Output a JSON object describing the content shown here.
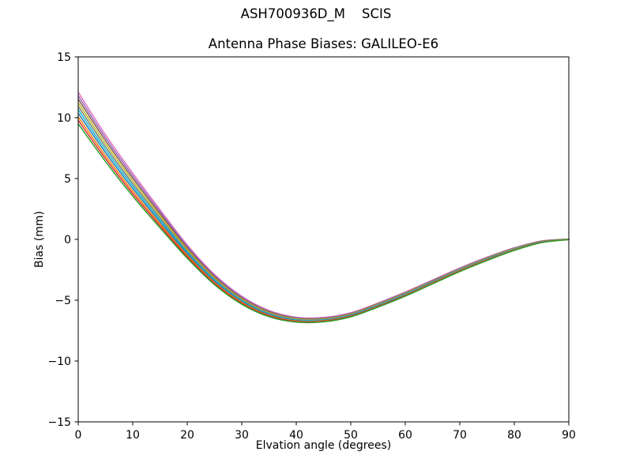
{
  "figure": {
    "suptitle": "ASH700936D_M    SCIS",
    "background": "#ffffff"
  },
  "chart_data": {
    "type": "line",
    "title": "Antenna Phase Biases: GALILEO-E6",
    "xlabel": "Elvation angle (degrees)",
    "ylabel": "Bias (mm)",
    "xlim": [
      0,
      90
    ],
    "ylim": [
      -15,
      15
    ],
    "x_ticks": [
      0,
      10,
      20,
      30,
      40,
      50,
      60,
      70,
      80,
      90
    ],
    "x_tick_labels": [
      "0",
      "10",
      "20",
      "30",
      "40",
      "50",
      "60",
      "70",
      "80",
      "90"
    ],
    "y_ticks": [
      -15,
      -10,
      -5,
      0,
      5,
      10,
      15
    ],
    "y_tick_labels": [
      "−15",
      "−10",
      "−5",
      "0",
      "5",
      "10",
      "15"
    ],
    "grid": false,
    "legend_position": "none",
    "axes_color": "#000000",
    "x": [
      0,
      5,
      10,
      15,
      20,
      25,
      30,
      35,
      40,
      45,
      50,
      55,
      60,
      65,
      70,
      75,
      80,
      85,
      90
    ],
    "series": [
      {
        "name": "line-1",
        "color": "#e377c2",
        "values": [
          12.1,
          8.6,
          5.45,
          2.45,
          -0.45,
          -2.88,
          -4.67,
          -5.84,
          -6.4,
          -6.42,
          -6.03,
          -5.23,
          -4.33,
          -3.34,
          -2.35,
          -1.46,
          -0.69,
          -0.13,
          0.02
        ]
      },
      {
        "name": "line-2",
        "color": "#9467bd",
        "values": [
          11.81,
          8.36,
          5.24,
          2.29,
          -0.57,
          -2.97,
          -4.74,
          -5.9,
          -6.44,
          -6.46,
          -6.07,
          -5.27,
          -4.37,
          -3.38,
          -2.38,
          -1.49,
          -0.71,
          -0.15,
          0.02
        ]
      },
      {
        "name": "line-3",
        "color": "#8c564b",
        "values": [
          11.53,
          8.12,
          5.03,
          2.12,
          -0.69,
          -3.06,
          -4.82,
          -5.95,
          -6.49,
          -6.5,
          -6.1,
          -5.3,
          -4.4,
          -3.41,
          -2.42,
          -1.52,
          -0.74,
          -0.16,
          0.01
        ]
      },
      {
        "name": "line-4",
        "color": "#bcbd22",
        "values": [
          11.23,
          7.86,
          4.81,
          1.95,
          -0.82,
          -3.16,
          -4.89,
          -6.01,
          -6.53,
          -6.54,
          -6.14,
          -5.34,
          -4.44,
          -3.45,
          -2.45,
          -1.55,
          -0.76,
          -0.18,
          0.01
        ]
      },
      {
        "name": "line-5",
        "color": "#7f7f7f",
        "values": [
          10.94,
          7.62,
          4.6,
          1.78,
          -0.94,
          -3.25,
          -4.96,
          -6.07,
          -6.58,
          -6.58,
          -6.18,
          -5.38,
          -4.48,
          -3.48,
          -2.48,
          -1.58,
          -0.79,
          -0.19,
          0.0
        ]
      },
      {
        "name": "line-6",
        "color": "#17becf",
        "values": [
          10.66,
          7.38,
          4.4,
          1.62,
          -1.06,
          -3.35,
          -5.04,
          -6.13,
          -6.62,
          -6.62,
          -6.22,
          -5.42,
          -4.52,
          -3.52,
          -2.52,
          -1.62,
          -0.81,
          -0.21,
          0.0
        ]
      },
      {
        "name": "line-7",
        "color": "#1f77b4",
        "values": [
          10.37,
          7.14,
          4.19,
          1.45,
          -1.18,
          -3.44,
          -5.11,
          -6.19,
          -6.67,
          -6.66,
          -6.26,
          -5.46,
          -4.56,
          -3.55,
          -2.55,
          -1.65,
          -0.84,
          -0.22,
          -0.01
        ]
      },
      {
        "name": "line-8",
        "color": "#ff7f0e",
        "values": [
          10.07,
          6.88,
          3.97,
          1.28,
          -1.31,
          -3.54,
          -5.18,
          -6.25,
          -6.71,
          -6.7,
          -6.3,
          -5.5,
          -4.6,
          -3.59,
          -2.58,
          -1.68,
          -0.86,
          -0.24,
          -0.01
        ]
      },
      {
        "name": "line-9",
        "color": "#d62728",
        "values": [
          9.79,
          6.64,
          3.76,
          1.12,
          -1.43,
          -3.63,
          -5.26,
          -6.3,
          -6.76,
          -6.74,
          -6.33,
          -5.53,
          -4.63,
          -3.63,
          -2.62,
          -1.71,
          -0.89,
          -0.26,
          -0.02
        ]
      },
      {
        "name": "line-10",
        "color": "#2ca02c",
        "values": [
          9.5,
          6.4,
          3.55,
          0.95,
          -1.55,
          -3.72,
          -5.33,
          -6.36,
          -6.8,
          -6.78,
          -6.37,
          -5.57,
          -4.67,
          -3.66,
          -2.65,
          -1.74,
          -0.91,
          -0.27,
          -0.02
        ]
      }
    ]
  }
}
